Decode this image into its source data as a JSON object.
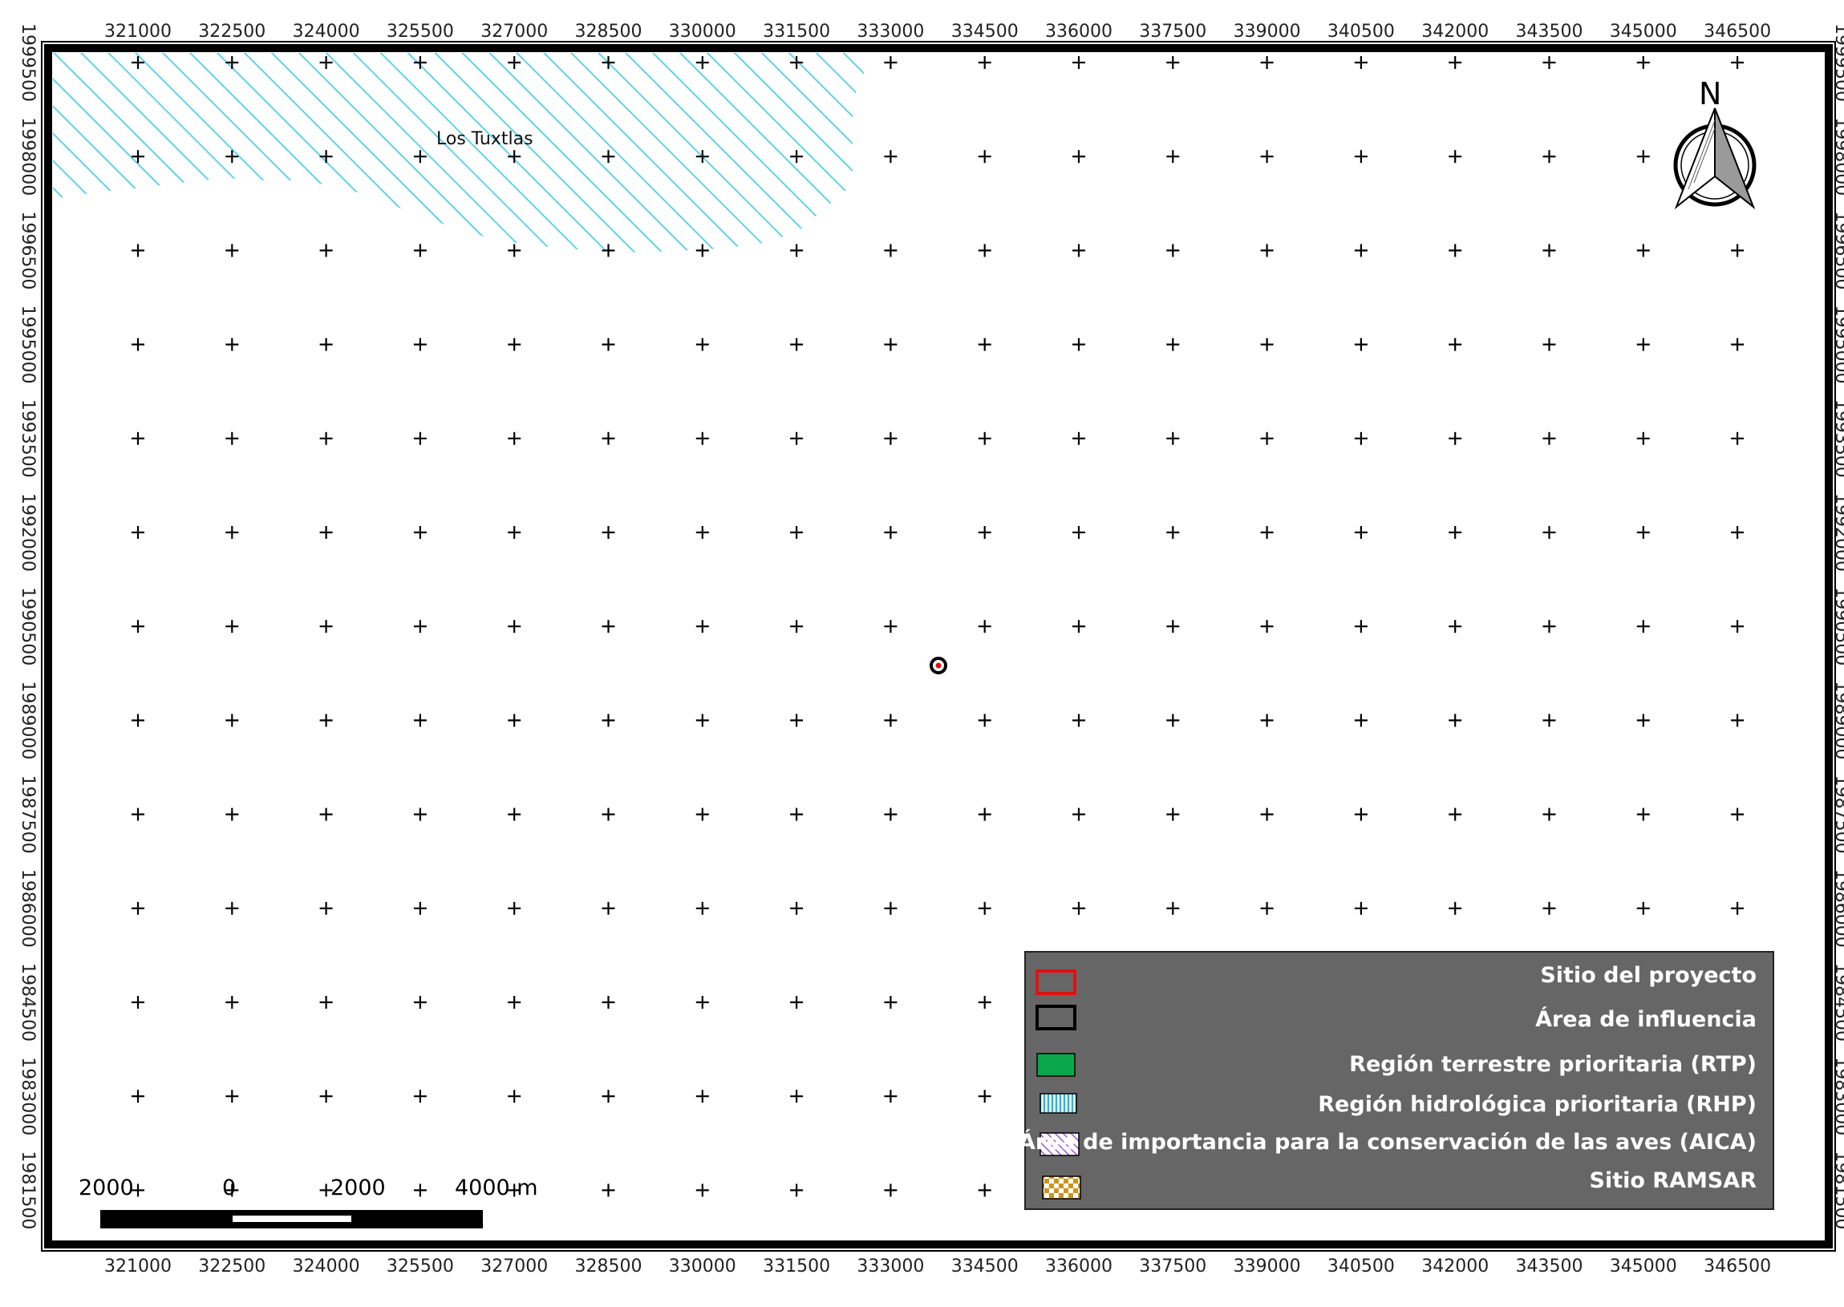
{
  "map": {
    "x_ticks": [
      "321000",
      "322500",
      "324000",
      "325500",
      "327000",
      "328500",
      "330000",
      "331500",
      "333000",
      "334500",
      "336000",
      "337500",
      "339000",
      "340500",
      "342000",
      "343500",
      "345000",
      "346500"
    ],
    "y_ticks": [
      "1999500",
      "1998000",
      "1996500",
      "1995000",
      "1993500",
      "1992000",
      "1990500",
      "1989000",
      "1987500",
      "1986000",
      "1984500",
      "1983000",
      "1981500"
    ],
    "region_label": "Los Tuxtlas",
    "north_label": "N",
    "colors": {
      "rhp_hatch": "#5fd3ea",
      "legend_bg": "#666666",
      "project_site": "#e01010",
      "influence_area": "#000000",
      "rtp": "#0aa84a",
      "aica": "#9a55d6",
      "ramsar": "#c9951c"
    }
  },
  "legend": {
    "items": [
      {
        "label": "Sitio del proyecto",
        "icon": "red-outline-rect"
      },
      {
        "label": "Área de influencia",
        "icon": "black-outline-rect"
      },
      {
        "label": "Región terrestre prioritaria (RTP)",
        "icon": "green-fill-rect"
      },
      {
        "label": "Región hidrológica prioritaria (RHP)",
        "icon": "blue-vertical-hatch-rect"
      },
      {
        "label": "Área de importancia para la conservación de las aves (AICA)",
        "icon": "purple-diagonal-hatch-rect"
      },
      {
        "label": "Sitio RAMSAR",
        "icon": "gold-checker-rect"
      }
    ]
  },
  "scale_bar": {
    "labels": [
      "2000",
      "0",
      "2000",
      "4000 m"
    ]
  }
}
